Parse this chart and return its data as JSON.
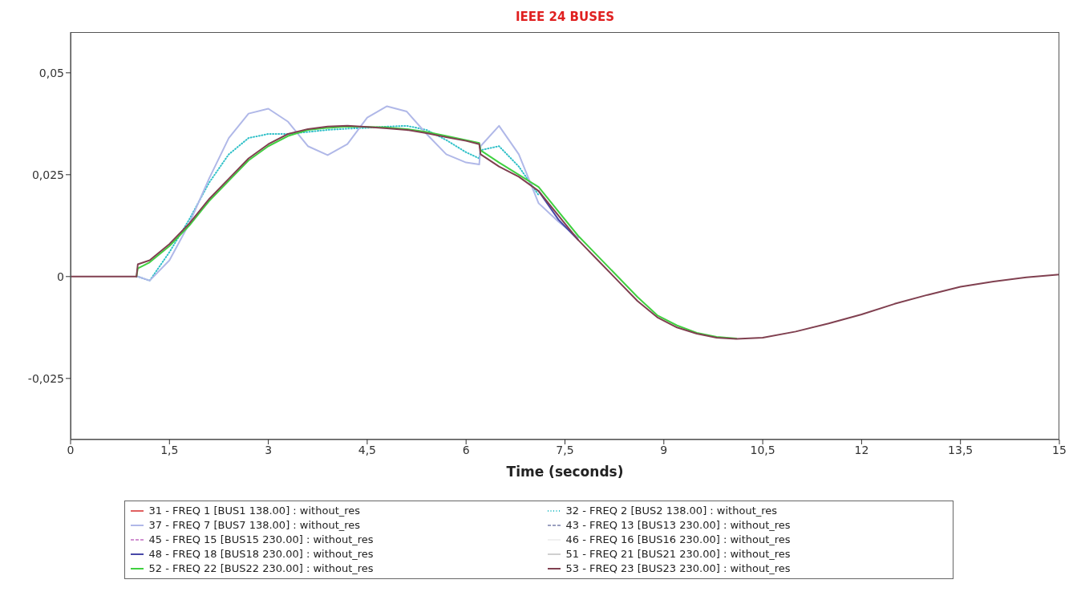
{
  "chart_data": {
    "type": "line",
    "title": "IEEE 24 BUSES",
    "xlabel": "Time (seconds)",
    "x": [
      0,
      1.0,
      1.02,
      1.2,
      1.5,
      1.8,
      2.1,
      2.4,
      2.7,
      3.0,
      3.3,
      3.6,
      3.9,
      4.2,
      4.5,
      4.8,
      5.1,
      5.4,
      5.7,
      6.0,
      6.2,
      6.22,
      6.5,
      6.8,
      7.1,
      7.4,
      7.7,
      8.0,
      8.3,
      8.6,
      8.9,
      9.2,
      9.5,
      9.8,
      10.1,
      10.5,
      11.0,
      11.5,
      12.0,
      12.5,
      13.0,
      13.5,
      14.0,
      14.5,
      15
    ],
    "xlim": [
      0,
      15
    ],
    "xticks": [
      0,
      {
        "value": 1.5,
        "label": "1,5"
      },
      3,
      {
        "value": 4.5,
        "label": "4,5"
      },
      6,
      {
        "value": 7.5,
        "label": "7,5"
      },
      9,
      {
        "value": 10.5,
        "label": "10,5"
      },
      12,
      {
        "value": 13.5,
        "label": "13,5"
      },
      15
    ],
    "ylim": [
      -0.04,
      0.06
    ],
    "yticks": [
      {
        "value": -0.025,
        "label": "-0,025"
      },
      0,
      {
        "value": 0.025,
        "label": "0,025"
      },
      {
        "value": 0.05,
        "label": "0,05"
      }
    ],
    "grid": false,
    "legend": "bottom",
    "marker": "none",
    "series": [
      {
        "name": "31 - FREQ 1 [BUS1 138.00] : without_res",
        "color": "#e06060",
        "line_style": "solid",
        "values": [
          null,
          null,
          null,
          null,
          null,
          null,
          null,
          null,
          null,
          null,
          null,
          null,
          null,
          null,
          null,
          null,
          null,
          null,
          null,
          null,
          null,
          null,
          null,
          null,
          null,
          null,
          null,
          null,
          null,
          null,
          null,
          null,
          null,
          null,
          null,
          null,
          null,
          null,
          null,
          null,
          null,
          null,
          null,
          null,
          null
        ]
      },
      {
        "name": "32 - FREQ 2 [BUS2 138.00] : without_res",
        "color": "#30c0c8",
        "line_style": "dotted",
        "values": [
          null,
          0,
          0,
          -0.001,
          0.006,
          0.014,
          0.023,
          0.03,
          0.034,
          0.035,
          0.035,
          0.0355,
          0.036,
          0.0363,
          0.0365,
          0.0368,
          0.037,
          0.036,
          0.0335,
          0.0305,
          0.029,
          0.031,
          0.032,
          0.027,
          0.02,
          null,
          null,
          null,
          null,
          null,
          null,
          null,
          null,
          null,
          null,
          null,
          null,
          null,
          null,
          null,
          null,
          null,
          null,
          null,
          null
        ]
      },
      {
        "name": "37 - FREQ 7 [BUS7 138.00] : without_res",
        "color": "#b0b8e8",
        "line_style": "solid",
        "values": [
          null,
          0,
          0,
          -0.001,
          0.004,
          0.013,
          0.024,
          0.034,
          0.04,
          0.0412,
          0.038,
          0.032,
          0.0298,
          0.0325,
          0.039,
          0.0418,
          0.0405,
          0.035,
          0.03,
          0.028,
          0.0275,
          0.032,
          0.037,
          0.03,
          0.018,
          0.0135,
          0.0095,
          null,
          null,
          null,
          null,
          null,
          null,
          null,
          null,
          null,
          null,
          null,
          null,
          null,
          null,
          null,
          null,
          null,
          null
        ]
      },
      {
        "name": "43 - FREQ 13 [BUS13 230.00] : without_res",
        "color": "#9aa0c0",
        "line_style": "dashed",
        "values": [
          null,
          null,
          null,
          null,
          null,
          null,
          null,
          null,
          null,
          null,
          null,
          null,
          null,
          null,
          null,
          null,
          null,
          null,
          null,
          null,
          null,
          null,
          null,
          null,
          null,
          null,
          null,
          null,
          null,
          null,
          null,
          null,
          null,
          null,
          null,
          null,
          null,
          null,
          null,
          null,
          null,
          null,
          null,
          null,
          null
        ]
      },
      {
        "name": "45 - FREQ 15 [BUS15 230.00] : without_res",
        "color": "#d090d0",
        "line_style": "dashed",
        "values": [
          null,
          null,
          null,
          null,
          null,
          null,
          null,
          null,
          null,
          null,
          null,
          null,
          null,
          null,
          null,
          null,
          null,
          null,
          null,
          null,
          null,
          null,
          null,
          null,
          null,
          null,
          null,
          null,
          null,
          null,
          null,
          null,
          null,
          null,
          null,
          null,
          null,
          null,
          null,
          null,
          null,
          null,
          null,
          null,
          null
        ]
      },
      {
        "name": "46 - FREQ 16 [BUS16 230.00] : without_res",
        "color": "#f0f0f0",
        "line_style": "solid",
        "values": [
          null,
          null,
          null,
          null,
          null,
          null,
          null,
          null,
          null,
          null,
          null,
          null,
          null,
          null,
          null,
          null,
          null,
          null,
          null,
          null,
          null,
          null,
          null,
          null,
          null,
          null,
          null,
          null,
          null,
          null,
          null,
          null,
          null,
          null,
          null,
          null,
          null,
          null,
          null,
          null,
          null,
          null,
          null,
          null,
          null
        ]
      },
      {
        "name": "48 - FREQ 18 [BUS18 230.00] : without_res",
        "color": "#4848a8",
        "line_style": "solid",
        "values": [
          null,
          null,
          null,
          null,
          null,
          null,
          null,
          null,
          null,
          null,
          null,
          null,
          null,
          null,
          null,
          null,
          null,
          null,
          null,
          null,
          null,
          null,
          null,
          null,
          0.021,
          0.014,
          0.009,
          null,
          null,
          null,
          null,
          null,
          null,
          null,
          null,
          null,
          null,
          null,
          null,
          null,
          null,
          null,
          null,
          null,
          null
        ]
      },
      {
        "name": "51 - FREQ 21 [BUS21 230.00] : without_res",
        "color": "#d0d0d0",
        "line_style": "solid",
        "values": [
          null,
          null,
          null,
          null,
          null,
          null,
          null,
          null,
          null,
          null,
          null,
          null,
          null,
          null,
          null,
          null,
          null,
          null,
          null,
          null,
          null,
          null,
          null,
          null,
          null,
          null,
          null,
          null,
          null,
          null,
          null,
          null,
          null,
          null,
          null,
          null,
          null,
          null,
          null,
          null,
          null,
          null,
          null,
          null,
          null
        ]
      },
      {
        "name": "52 - FREQ 22 [BUS22 230.00] : without_res",
        "color": "#40d040",
        "line_style": "solid",
        "values": [
          null,
          0,
          0.002,
          0.0035,
          0.0075,
          0.0125,
          0.0185,
          0.0235,
          0.0285,
          0.032,
          0.0345,
          0.036,
          0.0365,
          0.0368,
          0.0367,
          0.0366,
          0.0362,
          0.0355,
          0.0345,
          0.0335,
          0.0328,
          0.031,
          0.028,
          0.025,
          0.022,
          0.016,
          0.01,
          0.005,
          0,
          -0.005,
          -0.0095,
          -0.012,
          -0.0138,
          -0.0148,
          -0.0152,
          null,
          null,
          null,
          null,
          null,
          null,
          null,
          null,
          null,
          null
        ]
      },
      {
        "name": "53 - FREQ 23 [BUS23 230.00] : without_res",
        "color": "#804050",
        "line_style": "solid",
        "values": [
          0,
          0,
          0.003,
          0.004,
          0.008,
          0.013,
          0.019,
          0.024,
          0.029,
          0.0325,
          0.035,
          0.0362,
          0.0368,
          0.037,
          0.0367,
          0.0364,
          0.036,
          0.0352,
          0.0342,
          0.0333,
          0.0325,
          0.03,
          0.027,
          0.0245,
          0.021,
          0.015,
          0.009,
          0.004,
          -0.001,
          -0.006,
          -0.01,
          -0.0125,
          -0.014,
          -0.015,
          -0.0153,
          -0.015,
          -0.0135,
          -0.0115,
          -0.0093,
          -0.0067,
          -0.0045,
          -0.0025,
          -0.0012,
          -0.0002,
          0.0005
        ]
      }
    ]
  }
}
